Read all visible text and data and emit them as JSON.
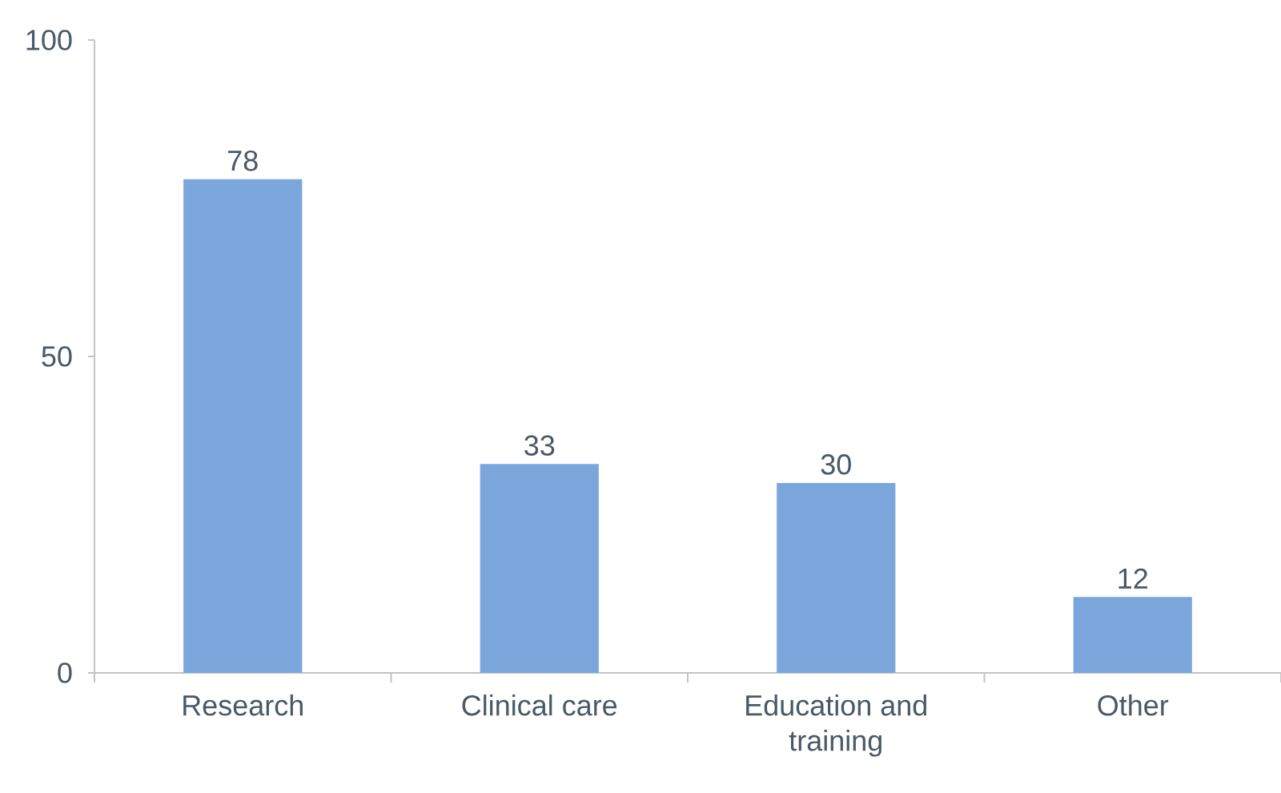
{
  "chart_data": {
    "type": "bar",
    "categories": [
      "Research",
      "Clinical care",
      "Education and training",
      "Other"
    ],
    "values": [
      78,
      33,
      30,
      12
    ],
    "color": "#7aa6dc",
    "ylim": [
      0,
      100
    ],
    "yticks": [
      0,
      50,
      100
    ],
    "data_labels": true
  }
}
